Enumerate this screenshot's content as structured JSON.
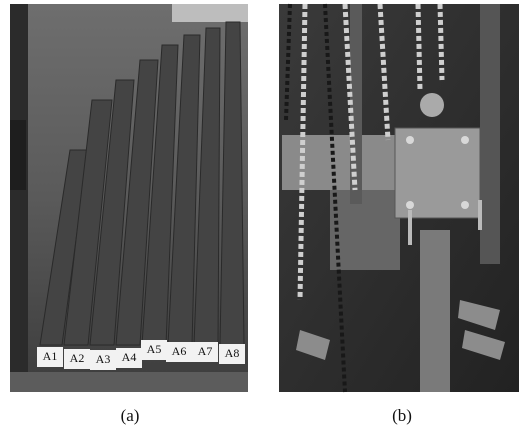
{
  "figure": {
    "panels": [
      {
        "caption": "(a)",
        "labels": [
          "A1",
          "A2",
          "A3",
          "A4",
          "A5",
          "A6",
          "A7",
          "A8"
        ]
      },
      {
        "caption": "(b)"
      }
    ]
  }
}
